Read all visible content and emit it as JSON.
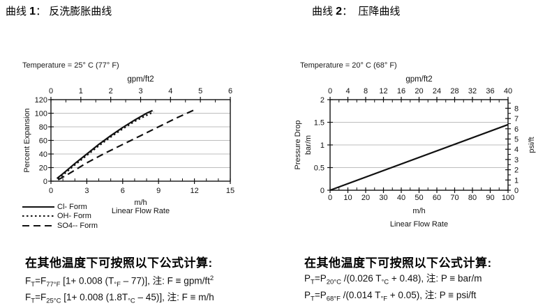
{
  "titles": {
    "left": {
      "prefix": "曲线 ",
      "number": "1",
      "rest": "： 反洗膨胀曲线"
    },
    "right": {
      "prefix": "曲线 ",
      "number": "2",
      "rest": "：  压降曲线"
    }
  },
  "chart_data": [
    {
      "type": "line",
      "name": "backwash-expansion-curve",
      "temperature_label": "Temperature = 25° C (77° F)",
      "top_axis": {
        "label": "gpm/ft2",
        "min": 0,
        "max": 6,
        "ticks": [
          0,
          1,
          2,
          3,
          4,
          5,
          6
        ],
        "minor_step": 0.5
      },
      "bottom_axis": {
        "unit": "m/h",
        "label": "Linear Flow Rate",
        "min": 0,
        "max": 15,
        "ticks": [
          0,
          3,
          6,
          9,
          12,
          15
        ],
        "minor_step": 1
      },
      "left_axis": {
        "label": "Percent Expansion",
        "min": 0,
        "max": 120,
        "ticks": [
          0,
          20,
          40,
          60,
          80,
          100,
          120
        ],
        "grid": [
          20,
          40,
          60,
          80,
          100
        ]
      },
      "series": [
        {
          "name": "Cl- Form",
          "style": "solid",
          "points": [
            [
              0.5,
              4
            ],
            [
              1,
              11
            ],
            [
              2,
              26
            ],
            [
              3,
              40
            ],
            [
              4,
              54
            ],
            [
              5,
              67
            ],
            [
              6,
              79
            ],
            [
              7,
              90
            ],
            [
              8,
              100
            ],
            [
              8.5,
              104
            ]
          ]
        },
        {
          "name": "OH- Form",
          "style": "dotted",
          "points": [
            [
              0.6,
              3
            ],
            [
              1,
              9
            ],
            [
              2,
              24
            ],
            [
              3,
              38
            ],
            [
              4,
              52
            ],
            [
              5,
              65
            ],
            [
              6,
              77
            ],
            [
              7,
              88
            ],
            [
              8,
              97
            ],
            [
              8.6,
              102
            ]
          ]
        },
        {
          "name": "SO4-- Form",
          "style": "dashed",
          "points": [
            [
              0.6,
              2
            ],
            [
              1.5,
              11
            ],
            [
              3,
              27
            ],
            [
              4.5,
              41
            ],
            [
              6,
              54
            ],
            [
              7.5,
              67
            ],
            [
              9,
              80
            ],
            [
              10.5,
              93
            ],
            [
              12,
              105
            ]
          ]
        }
      ]
    },
    {
      "type": "line",
      "name": "pressure-drop-curve",
      "temperature_label": "Temperature = 20° C (68° F)",
      "top_axis": {
        "label": "gpm/ft2",
        "min": 0,
        "max": 40,
        "ticks": [
          0,
          4,
          8,
          12,
          16,
          20,
          24,
          28,
          32,
          36,
          40
        ],
        "minor_step": 2
      },
      "bottom_axis": {
        "unit": "m/h",
        "label": "Linear Flow Rate",
        "min": 0,
        "max": 100,
        "ticks": [
          0,
          10,
          20,
          30,
          40,
          50,
          60,
          70,
          80,
          90,
          100
        ],
        "minor_step": 5
      },
      "left_axis": {
        "label_line1": "Pressure Drop",
        "label_line2": "bar/m",
        "min": 0,
        "max": 2,
        "ticks": [
          0,
          0.5,
          1,
          1.5,
          2
        ],
        "tick_labels": [
          "0",
          "0.5",
          "1",
          "1.5",
          "2"
        ],
        "grid": [
          0.5,
          1,
          1.5
        ]
      },
      "right_axis": {
        "label": "psi/ft",
        "min": 0,
        "max": 8.8417,
        "ticks": [
          0,
          1,
          2,
          3,
          4,
          5,
          6,
          7,
          8
        ],
        "minor_step": 0.5
      },
      "series": [
        {
          "name": "Pressure Drop",
          "style": "solid",
          "points": [
            [
              0,
              0
            ],
            [
              100,
              1.45
            ]
          ]
        }
      ]
    }
  ],
  "formulas": {
    "left": {
      "header": "在其他温度下可按照以下公式计算:",
      "lines": [
        [
          {
            "v": "F"
          },
          {
            "sub": "T"
          },
          {
            "v": "=F"
          },
          {
            "sub": "77°F"
          },
          {
            "v": " [1+ 0.008 (T"
          },
          {
            "sub": "°F"
          },
          {
            "v": " – 77)], 注: F ≡ gpm/ft"
          },
          {
            "sup": "2"
          }
        ],
        [
          {
            "v": "F"
          },
          {
            "sub": "T"
          },
          {
            "v": "=F"
          },
          {
            "sub": "25°C"
          },
          {
            "v": " [1+ 0.008 (1.8T"
          },
          {
            "sub": "°C"
          },
          {
            "v": " – 45)], 注: F ≡ m/h"
          }
        ]
      ]
    },
    "right": {
      "header": "在其他温度下可按照以下公式计算:",
      "lines": [
        [
          {
            "v": "P"
          },
          {
            "sub": "T"
          },
          {
            "v": "=P"
          },
          {
            "sub": "20°C"
          },
          {
            "v": " /(0.026 T"
          },
          {
            "sub": "°C"
          },
          {
            "v": " + 0.48), 注: P ≡ bar/m"
          }
        ],
        [
          {
            "v": "P"
          },
          {
            "sub": "T"
          },
          {
            "v": "=P"
          },
          {
            "sub": "68°F"
          },
          {
            "v": " /(0.014 T"
          },
          {
            "sub": "°F"
          },
          {
            "v": " + 0.05), 注: P ≡ psi/ft"
          }
        ]
      ]
    }
  },
  "colors": {
    "line": "#111111",
    "grid": "#bdbdbd",
    "text": "#111111"
  }
}
